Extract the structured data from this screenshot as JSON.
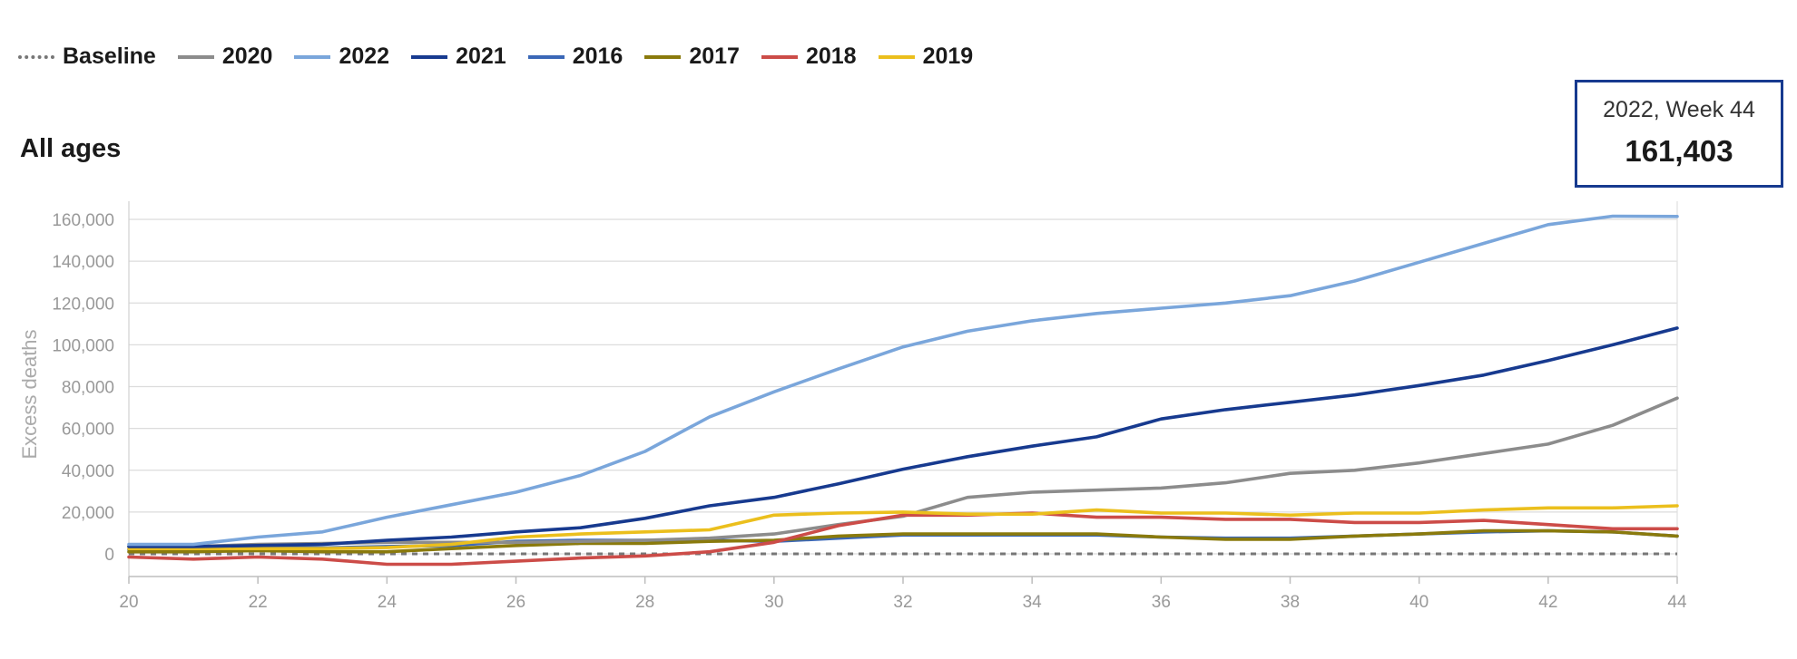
{
  "legend": [
    {
      "label": "Baseline",
      "color": "#777777",
      "style": "dotted"
    },
    {
      "label": "2020",
      "color": "#8c8c8c",
      "style": "solid"
    },
    {
      "label": "2022",
      "color": "#7aa6db",
      "style": "solid"
    },
    {
      "label": "2021",
      "color": "#173a8f",
      "style": "solid"
    },
    {
      "label": "2016",
      "color": "#3a67b7",
      "style": "solid"
    },
    {
      "label": "2017",
      "color": "#8a7a0c",
      "style": "solid"
    },
    {
      "label": "2018",
      "color": "#cc4c48",
      "style": "solid"
    },
    {
      "label": "2019",
      "color": "#ebbf1d",
      "style": "solid"
    }
  ],
  "panel_title": "All ages",
  "tooltip": {
    "title": "2022, Week 44",
    "value": "161,403"
  },
  "chart_data": {
    "type": "line",
    "title": "All ages",
    "xlabel": "",
    "ylabel": "Excess deaths",
    "xlim": [
      20,
      44
    ],
    "ylim": [
      -10000,
      160000
    ],
    "x_ticks": [
      "20",
      "22",
      "24",
      "26",
      "28",
      "30",
      "32",
      "34",
      "36",
      "38",
      "40",
      "42",
      "44"
    ],
    "y_ticks": [
      "0",
      "20,000",
      "40,000",
      "60,000",
      "80,000",
      "100,000",
      "120,000",
      "140,000",
      "160,000"
    ],
    "grid": true,
    "legend_position": "top-left",
    "x": [
      20,
      21,
      22,
      23,
      24,
      25,
      26,
      27,
      28,
      29,
      30,
      31,
      32,
      33,
      34,
      35,
      36,
      37,
      38,
      39,
      40,
      41,
      42,
      43,
      44
    ],
    "series": [
      {
        "name": "Baseline",
        "color": "#777777",
        "dash": true,
        "values": [
          0,
          0,
          0,
          0,
          0,
          0,
          0,
          0,
          0,
          0,
          0,
          0,
          0,
          0,
          0,
          0,
          0,
          0,
          0,
          0,
          0,
          0,
          0,
          0,
          0
        ]
      },
      {
        "name": "2016",
        "color": "#3a67b7",
        "dash": false,
        "values": [
          2000,
          2500,
          3000,
          2800,
          3500,
          4000,
          6000,
          6500,
          6500,
          6500,
          6000,
          7500,
          9000,
          9000,
          9000,
          9000,
          8000,
          7500,
          7500,
          8500,
          9500,
          10500,
          11000,
          10500,
          8500
        ]
      },
      {
        "name": "2017",
        "color": "#8a7a0c",
        "dash": false,
        "values": [
          1000,
          1000,
          1500,
          1000,
          1000,
          2500,
          4000,
          5000,
          5000,
          6000,
          6500,
          8500,
          9500,
          9500,
          9500,
          9500,
          8000,
          7000,
          7000,
          8500,
          9500,
          11000,
          11000,
          10500,
          8500
        ]
      },
      {
        "name": "2020",
        "color": "#8c8c8c",
        "dash": false,
        "values": [
          3500,
          3500,
          4500,
          5000,
          5500,
          5500,
          5500,
          6000,
          6500,
          7500,
          9500,
          14000,
          18000,
          27000,
          29500,
          30500,
          31500,
          34000,
          38500,
          40000,
          43500,
          48000,
          52500,
          61500,
          74500
        ]
      },
      {
        "name": "2018",
        "color": "#cc4c48",
        "dash": false,
        "values": [
          -1500,
          -2500,
          -1500,
          -2500,
          -5000,
          -5000,
          -3500,
          -2000,
          -1000,
          1000,
          5500,
          13500,
          18500,
          18500,
          19500,
          17500,
          17500,
          16500,
          16500,
          15000,
          15000,
          16000,
          14000,
          12000,
          12000
        ]
      },
      {
        "name": "2019",
        "color": "#ebbf1d",
        "dash": false,
        "values": [
          2500,
          2500,
          2500,
          2500,
          3000,
          4500,
          8000,
          9500,
          10500,
          11500,
          18500,
          19500,
          20000,
          19000,
          19000,
          21000,
          19500,
          19500,
          18500,
          19500,
          19500,
          21000,
          22000,
          22000,
          23000
        ]
      },
      {
        "name": "2021",
        "color": "#173a8f",
        "dash": false,
        "values": [
          3500,
          3500,
          4000,
          4500,
          6500,
          8000,
          10500,
          12500,
          17000,
          23000,
          27000,
          33500,
          40500,
          46500,
          51500,
          56000,
          64500,
          69000,
          72500,
          76000,
          80500,
          85500,
          92500,
          100000,
          108000
        ]
      },
      {
        "name": "2022",
        "color": "#7aa6db",
        "dash": false,
        "values": [
          4500,
          4500,
          8000,
          10500,
          17500,
          23500,
          29500,
          37500,
          49000,
          65500,
          77500,
          88500,
          99000,
          106500,
          111500,
          115000,
          117500,
          120000,
          123500,
          130500,
          139500,
          148500,
          157500,
          161500,
          161403
        ]
      }
    ]
  }
}
